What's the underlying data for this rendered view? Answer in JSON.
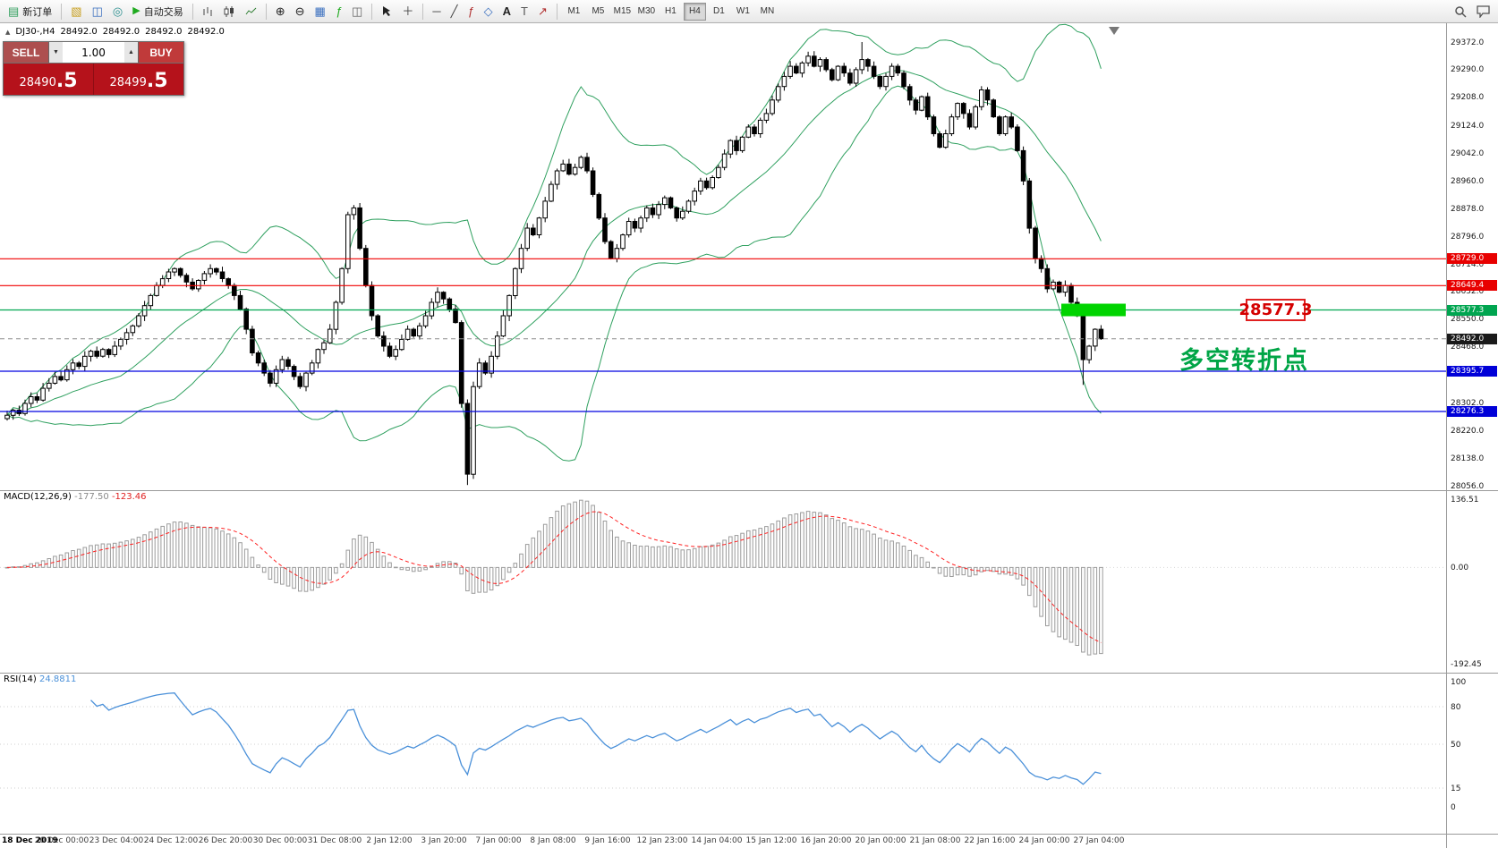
{
  "toolbar": {
    "new_order_label": "新订单",
    "autotrade_label": "自动交易",
    "timeframes": [
      "M1",
      "M5",
      "M15",
      "M30",
      "H1",
      "H4",
      "D1",
      "W1",
      "MN"
    ],
    "active_timeframe": "H4",
    "icons": {
      "new_order": "▤",
      "profiles": "▧",
      "market_watch": "◫",
      "navigator": "◎",
      "autotrade_play": "▶",
      "grid": "▦",
      "indicators": "ƒ",
      "tile_windows": "◫",
      "zoom_in": "⊕",
      "zoom_out": "⊖",
      "crosshair": "＋",
      "hline": "─",
      "trendline": "╱",
      "fibonacci": "ƒ",
      "shapes": "◇",
      "text_tool": "A",
      "label_tool": "T",
      "arrow_tool": "↗"
    }
  },
  "chart_header": {
    "collapse_icon": "▲",
    "symbol_period": "DJ30-,H4",
    "open": "28492.0",
    "high": "28492.0",
    "low": "28492.0",
    "close": "28492.0"
  },
  "trade_panel": {
    "sell_label": "SELL",
    "buy_label": "BUY",
    "volume": "1.00",
    "spin_down": "▼",
    "spin_up": "▲",
    "sell_price_main": "28490",
    "sell_price_big": ".5",
    "buy_price_main": "28499",
    "buy_price_big": ".5"
  },
  "annotations": {
    "price_tag": "28577.3",
    "turning_point": "多空转折点"
  },
  "price_axis": {
    "ticks": [
      "29372.0",
      "29290.0",
      "29208.0",
      "29124.0",
      "29042.0",
      "28960.0",
      "28878.0",
      "28796.0",
      "28714.0",
      "28632.0",
      "28550.0",
      "28468.0",
      "28302.0",
      "28220.0",
      "28138.0",
      "28056.0"
    ],
    "tick_values": [
      29372,
      29290,
      29208,
      29124,
      29042,
      28960,
      28878,
      28796,
      28714,
      28632,
      28550,
      28468,
      28302,
      28220,
      28138,
      28056
    ],
    "markers": [
      {
        "label": "28729.0",
        "price": 28729.0,
        "bg": "#e80000"
      },
      {
        "label": "28649.4",
        "price": 28649.4,
        "bg": "#e80000"
      },
      {
        "label": "28577.3",
        "price": 28577.3,
        "bg": "#00a550"
      },
      {
        "label": "28492.0",
        "price": 28492.0,
        "bg": "#1a1a1a"
      },
      {
        "label": "28395.7",
        "price": 28395.7,
        "bg": "#0000d8"
      },
      {
        "label": "28276.3",
        "price": 28276.3,
        "bg": "#0000d8"
      }
    ]
  },
  "time_axis": {
    "labels": [
      "18 Dec 2019",
      "20 Dec 00:00",
      "23 Dec 04:00",
      "24 Dec 12:00",
      "26 Dec 20:00",
      "30 Dec 00:00",
      "31 Dec 08:00",
      "2 Jan 12:00",
      "3 Jan 20:00",
      "7 Jan 00:00",
      "8 Jan 08:00",
      "9 Jan 16:00",
      "12 Jan 23:00",
      "14 Jan 04:00",
      "15 Jan 12:00",
      "16 Jan 20:00",
      "20 Jan 00:00",
      "21 Jan 08:00",
      "22 Jan 16:00",
      "24 Jan 00:00",
      "27 Jan 04:00"
    ]
  },
  "macd_panel": {
    "title": "MACD(12,26,9)",
    "value_main": "-177.50",
    "value_signal": "-123.46",
    "axis": [
      "136.51",
      "0.00",
      "-192.45"
    ],
    "axis_values": [
      136.51,
      0,
      -192.45
    ]
  },
  "rsi_panel": {
    "title": "RSI(14)",
    "value": "24.8811",
    "axis": [
      "100",
      "80",
      "50",
      "15",
      "0"
    ],
    "axis_values": [
      100,
      80,
      50,
      15,
      0
    ],
    "levels": [
      80,
      50,
      15
    ]
  },
  "chart_data": {
    "type": "candlestick",
    "symbol": "DJ30-",
    "timeframe": "H4",
    "price_min": 28056,
    "price_max": 29372,
    "first_open": 28255,
    "closes": [
      28265,
      28280,
      28270,
      28300,
      28320,
      28310,
      28345,
      28360,
      28380,
      28370,
      28400,
      28420,
      28410,
      28440,
      28455,
      28440,
      28460,
      28445,
      28470,
      28490,
      28510,
      28530,
      28560,
      28590,
      28620,
      28650,
      28670,
      28690,
      28700,
      28680,
      28660,
      28640,
      28665,
      28685,
      28700,
      28690,
      28670,
      28650,
      28620,
      28580,
      28520,
      28450,
      28420,
      28390,
      28360,
      28400,
      28430,
      28410,
      28380,
      28350,
      28390,
      28420,
      28460,
      28480,
      28520,
      28600,
      28700,
      28860,
      28880,
      28760,
      28650,
      28560,
      28500,
      28470,
      28440,
      28460,
      28490,
      28520,
      28500,
      28530,
      28560,
      28600,
      28630,
      28610,
      28580,
      28540,
      28300,
      28090,
      28350,
      28420,
      28390,
      28440,
      28500,
      28560,
      28620,
      28700,
      28760,
      28820,
      28800,
      28850,
      28900,
      28950,
      28990,
      29010,
      28980,
      29000,
      29030,
      28990,
      28920,
      28850,
      28780,
      28730,
      28760,
      28800,
      28840,
      28820,
      28850,
      28880,
      28860,
      28890,
      28910,
      28880,
      28850,
      28870,
      28900,
      28930,
      28960,
      28940,
      28970,
      29000,
      29040,
      29080,
      29050,
      29090,
      29120,
      29100,
      29140,
      29160,
      29200,
      29240,
      29270,
      29300,
      29280,
      29310,
      29330,
      29300,
      29320,
      29290,
      29260,
      29300,
      29280,
      29250,
      29290,
      29320,
      29300,
      29270,
      29240,
      29270,
      29300,
      29280,
      29240,
      29200,
      29170,
      29210,
      29150,
      29100,
      29060,
      29100,
      29150,
      29190,
      29160,
      29120,
      29180,
      29230,
      29200,
      29150,
      29100,
      29150,
      29120,
      29050,
      28960,
      28820,
      28730,
      28700,
      28640,
      28660,
      28630,
      28650,
      28600,
      28560,
      28430,
      28470,
      28520,
      28492
    ],
    "wick_overrides": {
      "77": {
        "low": 28058
      },
      "143": {
        "high": 29372
      },
      "180": {
        "low": 28355
      }
    },
    "overlays": {
      "bollinger": {
        "period": 20,
        "deviation": 2,
        "color": "#2fa05f"
      },
      "horizontal_lines": [
        {
          "price": 28729.0,
          "color": "#f00000"
        },
        {
          "price": 28649.4,
          "color": "#f00000"
        },
        {
          "price": 28577.3,
          "color": "#00a550"
        },
        {
          "price": 28395.7,
          "color": "#0000e0"
        },
        {
          "price": 28276.3,
          "color": "#0000e0"
        }
      ],
      "current_price": 28492.0,
      "highlight_rect": {
        "price": 28577.3,
        "color": "#00d400"
      }
    },
    "indicators": {
      "macd": {
        "fast": 12,
        "slow": 26,
        "signal": 9,
        "current": "-177.50",
        "current_signal": "-123.46"
      },
      "rsi": {
        "period": 14,
        "current": "24.8811"
      }
    }
  }
}
